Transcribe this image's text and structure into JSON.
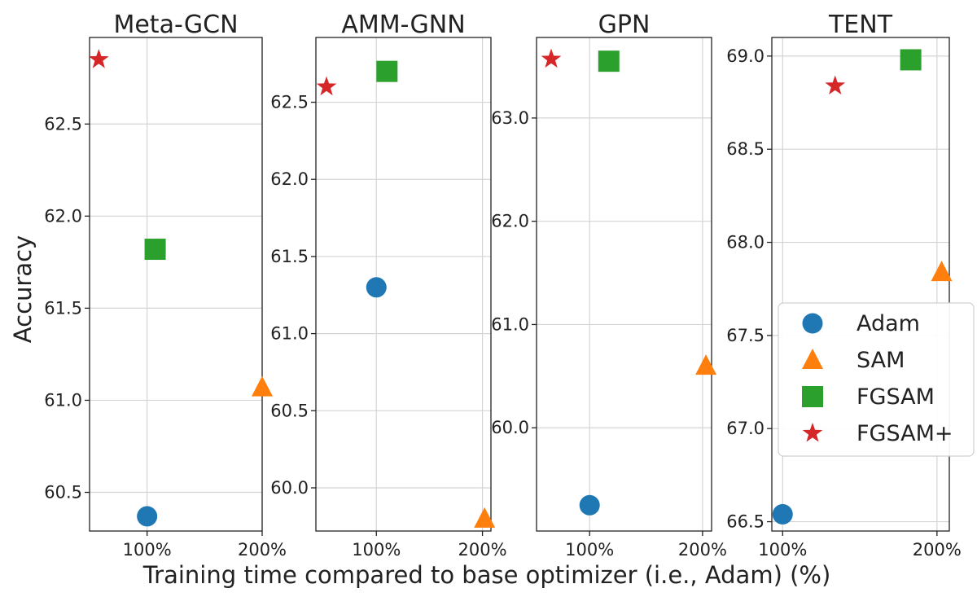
{
  "figure": {
    "ylabel": "Accuracy",
    "xlabel": "Training time compared to base optimizer (i.e., Adam) (%)"
  },
  "legend": {
    "placement": "right-middle",
    "entries": [
      {
        "name": "Adam",
        "marker": "circle",
        "color": "#1f77b4"
      },
      {
        "name": "SAM",
        "marker": "triangle",
        "color": "#ff7f0e"
      },
      {
        "name": "FGSAM",
        "marker": "square",
        "color": "#2ca02c"
      },
      {
        "name": "FGSAM+",
        "marker": "star",
        "color": "#d62728"
      }
    ]
  },
  "chart_data": [
    {
      "type": "scatter",
      "title": "Meta-GCN",
      "xticks": [
        {
          "value": 100,
          "label": "100%"
        },
        {
          "value": 200,
          "label": "200%"
        }
      ],
      "yticks": [
        {
          "value": 60.5,
          "label": "60.5"
        },
        {
          "value": 61.0,
          "label": "61.0"
        },
        {
          "value": 61.5,
          "label": "61.5"
        },
        {
          "value": 62.0,
          "label": "62.0"
        },
        {
          "value": 62.5,
          "label": "62.5"
        }
      ],
      "xlim": [
        50,
        200
      ],
      "ylim": [
        60.29,
        62.97
      ],
      "grid": true,
      "series": [
        {
          "name": "Adam",
          "x": 100,
          "y": 60.37
        },
        {
          "name": "SAM",
          "x": 200,
          "y": 61.07
        },
        {
          "name": "FGSAM",
          "x": 107,
          "y": 61.82
        },
        {
          "name": "FGSAM+",
          "x": 58,
          "y": 62.85
        }
      ]
    },
    {
      "type": "scatter",
      "title": "AMM-GNN",
      "xticks": [
        {
          "value": 100,
          "label": "100%"
        },
        {
          "value": 200,
          "label": "200%"
        }
      ],
      "yticks": [
        {
          "value": 60.0,
          "label": "60.0"
        },
        {
          "value": 60.5,
          "label": "60.5"
        },
        {
          "value": 61.0,
          "label": "61.0"
        },
        {
          "value": 61.5,
          "label": "61.5"
        },
        {
          "value": 62.0,
          "label": "62.0"
        },
        {
          "value": 62.5,
          "label": "62.5"
        }
      ],
      "xlim": [
        43,
        208
      ],
      "ylim": [
        59.72,
        62.92
      ],
      "grid": true,
      "series": [
        {
          "name": "Adam",
          "x": 100,
          "y": 61.3
        },
        {
          "name": "SAM",
          "x": 202,
          "y": 59.8
        },
        {
          "name": "FGSAM",
          "x": 110,
          "y": 62.7
        },
        {
          "name": "FGSAM+",
          "x": 53,
          "y": 62.6
        }
      ]
    },
    {
      "type": "scatter",
      "title": "GPN",
      "xticks": [
        {
          "value": 100,
          "label": "100%"
        },
        {
          "value": 200,
          "label": "200%"
        }
      ],
      "yticks": [
        {
          "value": 60.0,
          "label": "60.0"
        },
        {
          "value": 61.0,
          "label": "61.0"
        },
        {
          "value": 62.0,
          "label": "62.0"
        },
        {
          "value": 63.0,
          "label": "63.0"
        }
      ],
      "xlim": [
        53,
        208
      ],
      "ylim": [
        59.0,
        63.78
      ],
      "grid": true,
      "series": [
        {
          "name": "Adam",
          "x": 100,
          "y": 59.25
        },
        {
          "name": "SAM",
          "x": 203,
          "y": 60.6
        },
        {
          "name": "FGSAM",
          "x": 117,
          "y": 63.55
        },
        {
          "name": "FGSAM+",
          "x": 66,
          "y": 63.57
        }
      ]
    },
    {
      "type": "scatter",
      "title": "TENT",
      "xticks": [
        {
          "value": 100,
          "label": "100%"
        },
        {
          "value": 200,
          "label": "200%"
        }
      ],
      "yticks": [
        {
          "value": 66.5,
          "label": "66.5"
        },
        {
          "value": 67.0,
          "label": "67.0"
        },
        {
          "value": 67.5,
          "label": "67.5"
        },
        {
          "value": 68.0,
          "label": "68.0"
        },
        {
          "value": 68.5,
          "label": "68.5"
        },
        {
          "value": 69.0,
          "label": "69.0"
        }
      ],
      "xlim": [
        93,
        208
      ],
      "ylim": [
        66.45,
        69.1
      ],
      "grid": true,
      "series": [
        {
          "name": "Adam",
          "x": 100,
          "y": 66.54
        },
        {
          "name": "SAM",
          "x": 203,
          "y": 67.84
        },
        {
          "name": "FGSAM",
          "x": 183,
          "y": 68.98
        },
        {
          "name": "FGSAM+",
          "x": 134,
          "y": 68.84
        }
      ]
    }
  ]
}
